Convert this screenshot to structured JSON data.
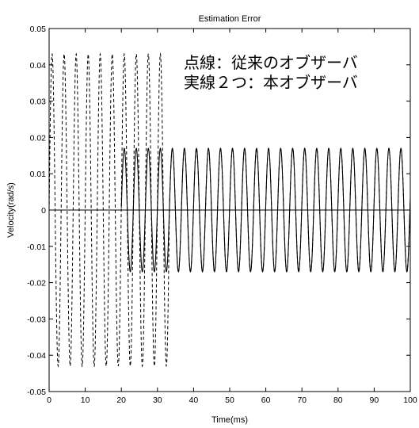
{
  "chart_data": {
    "type": "line",
    "title": "Estimation Error",
    "xlabel": "Time(ms)",
    "ylabel": "Velocity(rad/s)",
    "xlim": [
      0,
      100
    ],
    "ylim": [
      -0.05,
      0.05
    ],
    "x_ticks": [
      "0",
      "10",
      "20",
      "30",
      "40",
      "50",
      "60",
      "70",
      "80",
      "90",
      "100"
    ],
    "y_ticks": [
      "0.05",
      "0.04",
      "0.03",
      "0.02",
      "0.01",
      "0",
      "-0.01",
      "-0.02",
      "-0.03",
      "-0.04",
      "-0.05"
    ],
    "grid": false,
    "legend": "none",
    "annotations": [
      "点線：従来のオブザーバ",
      "実線２つ：本オブザーバ"
    ],
    "series": [
      {
        "style": "dashed",
        "period_ms": 3.33,
        "segments": [
          {
            "x_range": [
              0,
              33.3
            ],
            "amplitude": 0.043
          },
          {
            "x_range": [
              33.3,
              100
            ],
            "amplitude": 0.017
          }
        ]
      },
      {
        "style": "solid",
        "period_ms": 3.33,
        "segments": [
          {
            "x_range": [
              0,
              20
            ],
            "amplitude": 0.0
          }
        ]
      },
      {
        "style": "solid",
        "period_ms": 3.33,
        "segments": [
          {
            "x_range": [
              20,
              100
            ],
            "amplitude": 0.017
          }
        ]
      }
    ]
  }
}
